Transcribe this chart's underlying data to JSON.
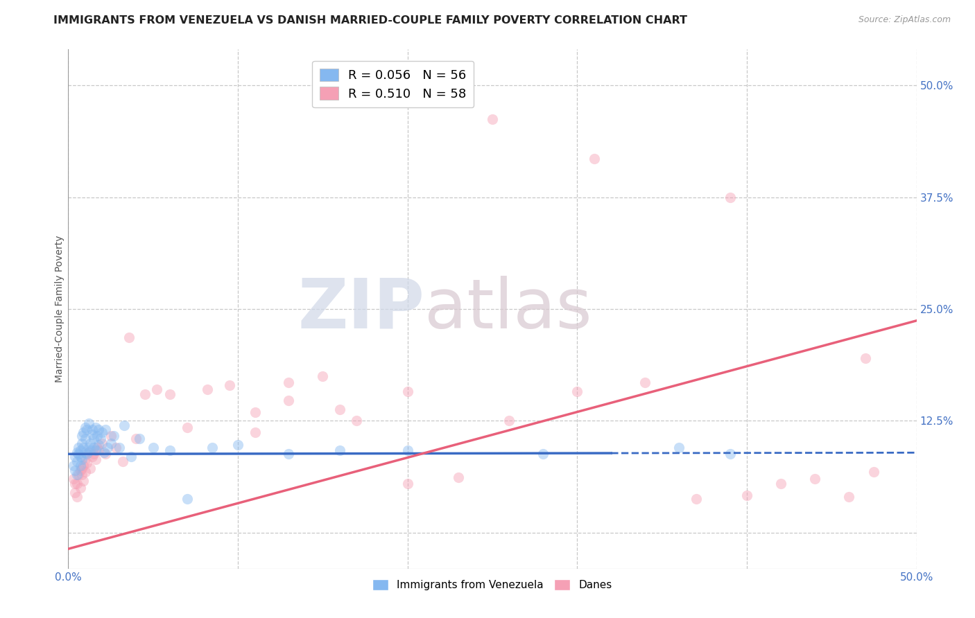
{
  "title": "IMMIGRANTS FROM VENEZUELA VS DANISH MARRIED-COUPLE FAMILY POVERTY CORRELATION CHART",
  "source": "Source: ZipAtlas.com",
  "ylabel": "Married-Couple Family Poverty",
  "xlim": [
    0.0,
    0.5
  ],
  "ylim": [
    -0.04,
    0.54
  ],
  "xticks": [
    0.0,
    0.1,
    0.2,
    0.3,
    0.4,
    0.5
  ],
  "xticklabels": [
    "0.0%",
    "",
    "",
    "",
    "",
    "50.0%"
  ],
  "ytick_positions": [
    0.0,
    0.125,
    0.25,
    0.375,
    0.5
  ],
  "ytick_labels": [
    "",
    "12.5%",
    "25.0%",
    "37.5%",
    "50.0%"
  ],
  "grid_color": "#c8c8c8",
  "background_color": "#ffffff",
  "series1_color": "#85b8f0",
  "series2_color": "#f5a0b5",
  "line1_color": "#3a6bc4",
  "line2_color": "#e8607a",
  "R1": 0.056,
  "N1": 56,
  "R2": 0.51,
  "N2": 58,
  "legend_label1": "Immigrants from Venezuela",
  "legend_label2": "Danes",
  "watermark_zip": "ZIP",
  "watermark_atlas": "atlas",
  "title_fontsize": 11.5,
  "axis_label_fontsize": 10,
  "tick_fontsize": 11,
  "scatter_size": 120,
  "scatter_alpha": 0.45,
  "line1_intercept": 0.088,
  "line1_slope": 0.003,
  "line2_intercept": -0.018,
  "line2_slope": 0.51,
  "series1_x": [
    0.003,
    0.004,
    0.004,
    0.005,
    0.005,
    0.005,
    0.006,
    0.006,
    0.007,
    0.007,
    0.007,
    0.008,
    0.008,
    0.008,
    0.009,
    0.009,
    0.01,
    0.01,
    0.01,
    0.011,
    0.011,
    0.012,
    0.012,
    0.013,
    0.013,
    0.014,
    0.014,
    0.015,
    0.015,
    0.016,
    0.016,
    0.017,
    0.018,
    0.018,
    0.019,
    0.02,
    0.021,
    0.022,
    0.023,
    0.025,
    0.027,
    0.03,
    0.033,
    0.037,
    0.042,
    0.05,
    0.06,
    0.07,
    0.085,
    0.1,
    0.13,
    0.16,
    0.2,
    0.28,
    0.36,
    0.39
  ],
  "series1_y": [
    0.075,
    0.085,
    0.07,
    0.09,
    0.08,
    0.065,
    0.088,
    0.095,
    0.085,
    0.092,
    0.075,
    0.1,
    0.108,
    0.082,
    0.095,
    0.112,
    0.09,
    0.105,
    0.118,
    0.088,
    0.115,
    0.095,
    0.122,
    0.1,
    0.092,
    0.11,
    0.115,
    0.105,
    0.095,
    0.118,
    0.092,
    0.108,
    0.115,
    0.098,
    0.105,
    0.112,
    0.09,
    0.115,
    0.095,
    0.1,
    0.108,
    0.095,
    0.12,
    0.085,
    0.105,
    0.095,
    0.092,
    0.038,
    0.095,
    0.098,
    0.088,
    0.092,
    0.092,
    0.088,
    0.095,
    0.088
  ],
  "series2_x": [
    0.003,
    0.004,
    0.004,
    0.005,
    0.005,
    0.006,
    0.007,
    0.007,
    0.008,
    0.008,
    0.009,
    0.009,
    0.01,
    0.01,
    0.011,
    0.012,
    0.013,
    0.014,
    0.015,
    0.016,
    0.017,
    0.018,
    0.02,
    0.022,
    0.025,
    0.028,
    0.032,
    0.036,
    0.04,
    0.045,
    0.052,
    0.06,
    0.07,
    0.082,
    0.095,
    0.11,
    0.13,
    0.15,
    0.17,
    0.2,
    0.23,
    0.26,
    0.3,
    0.34,
    0.37,
    0.4,
    0.42,
    0.44,
    0.46,
    0.475,
    0.11,
    0.13,
    0.16,
    0.2,
    0.25,
    0.31,
    0.39,
    0.47
  ],
  "series2_y": [
    0.06,
    0.045,
    0.055,
    0.055,
    0.04,
    0.065,
    0.07,
    0.05,
    0.065,
    0.072,
    0.058,
    0.075,
    0.068,
    0.082,
    0.078,
    0.09,
    0.072,
    0.085,
    0.088,
    0.082,
    0.095,
    0.092,
    0.1,
    0.088,
    0.108,
    0.095,
    0.08,
    0.218,
    0.105,
    0.155,
    0.16,
    0.155,
    0.118,
    0.16,
    0.165,
    0.112,
    0.168,
    0.175,
    0.125,
    0.055,
    0.062,
    0.125,
    0.158,
    0.168,
    0.038,
    0.042,
    0.055,
    0.06,
    0.04,
    0.068,
    0.135,
    0.148,
    0.138,
    0.158,
    0.462,
    0.418,
    0.375,
    0.195
  ]
}
